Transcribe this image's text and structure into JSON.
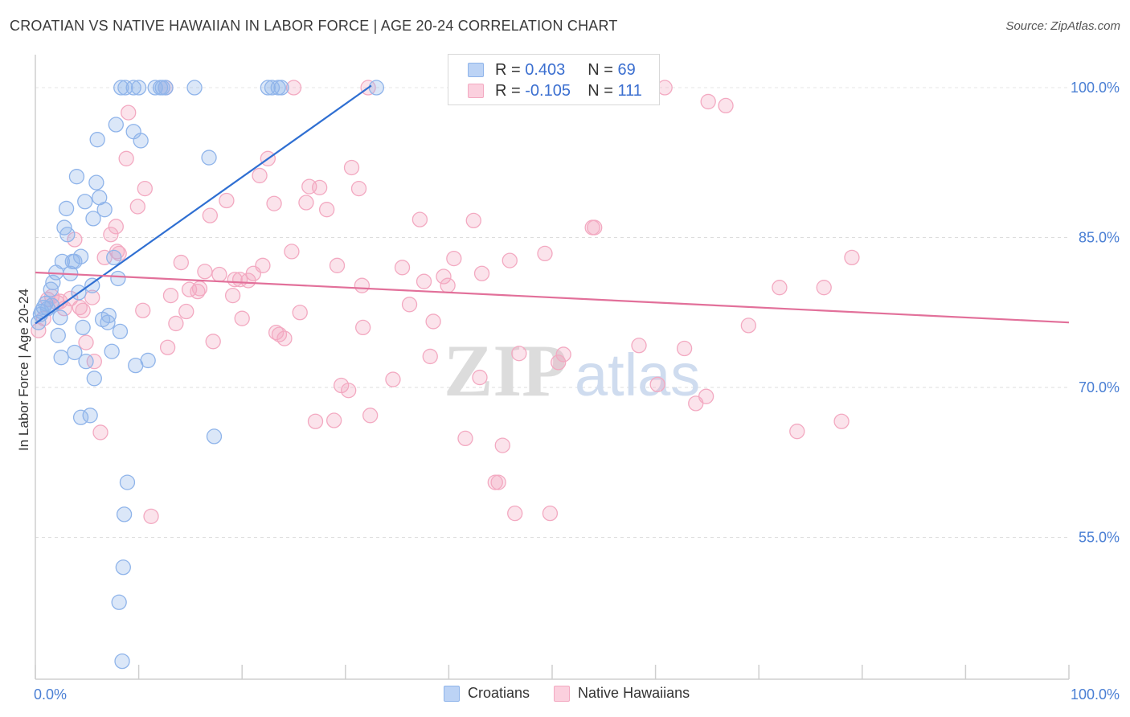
{
  "title": "CROATIAN VS NATIVE HAWAIIAN IN LABOR FORCE | AGE 20-24 CORRELATION CHART",
  "source": "Source: ZipAtlas.com",
  "watermark": {
    "zip": "ZIP",
    "atlas": "atlas"
  },
  "legend": {
    "croatians": {
      "r_label": "R =",
      "r_value": "0.403",
      "n_label": "N =",
      "n_value": "69"
    },
    "hawaiians": {
      "r_label": "R =",
      "r_value": "-0.105",
      "n_label": "N =",
      "n_value": "111"
    }
  },
  "bottom_legend": {
    "croatians": "Croatians",
    "hawaiians": "Native Hawaiians"
  },
  "chart_data": {
    "type": "scatter",
    "title": "CROATIAN VS NATIVE HAWAIIAN IN LABOR FORCE | AGE 20-24 CORRELATION CHART",
    "xlabel": "",
    "ylabel": "In Labor Force | Age 20-24",
    "xlim": [
      0,
      100
    ],
    "ylim": [
      40.8,
      103.3
    ],
    "x_tick_labels": [
      "0.0%",
      "100.0%"
    ],
    "y_ticks": [
      55,
      70,
      85,
      100
    ],
    "y_tick_labels": [
      "55.0%",
      "70.0%",
      "85.0%",
      "100.0%"
    ],
    "grid": true,
    "colors": {
      "croatians": "#8fb4ea",
      "croatians_line": "#2f6fd2",
      "hawaiians": "#f3a9c1",
      "hawaiians_line": "#e2709a"
    },
    "series": [
      {
        "name": "Croatians",
        "trendline": {
          "x": [
            0,
            32.5
          ],
          "y": [
            76.4,
            100.2
          ]
        },
        "points": [
          [
            0.3,
            76.5
          ],
          [
            0.5,
            77.3
          ],
          [
            0.6,
            77.6
          ],
          [
            0.8,
            78
          ],
          [
            1.0,
            78.4
          ],
          [
            1.2,
            77.9
          ],
          [
            1.5,
            79.8
          ],
          [
            1.6,
            78.2
          ],
          [
            1.7,
            80.5
          ],
          [
            2,
            81.5
          ],
          [
            2.2,
            75.2
          ],
          [
            2.4,
            77
          ],
          [
            2.5,
            73
          ],
          [
            2.6,
            82.6
          ],
          [
            2.8,
            86
          ],
          [
            3,
            87.9
          ],
          [
            3.1,
            85.3
          ],
          [
            3.4,
            81.4
          ],
          [
            3.6,
            82.6
          ],
          [
            3.8,
            73.5
          ],
          [
            3.8,
            82.6
          ],
          [
            4,
            91.1
          ],
          [
            4.2,
            79.5
          ],
          [
            4.4,
            83.1
          ],
          [
            4.4,
            67
          ],
          [
            4.6,
            76
          ],
          [
            4.8,
            88.6
          ],
          [
            4.9,
            72.6
          ],
          [
            5.3,
            67.2
          ],
          [
            5.5,
            80.2
          ],
          [
            5.6,
            86.9
          ],
          [
            5.7,
            70.9
          ],
          [
            5.9,
            90.5
          ],
          [
            6,
            94.8
          ],
          [
            6.2,
            89
          ],
          [
            6.5,
            76.8
          ],
          [
            6.7,
            87.8
          ],
          [
            7,
            76.5
          ],
          [
            7.1,
            77.2
          ],
          [
            7.4,
            73.6
          ],
          [
            7.6,
            83
          ],
          [
            7.8,
            96.3
          ],
          [
            8.0,
            80.9
          ],
          [
            8.1,
            48.5
          ],
          [
            8.2,
            75.6
          ],
          [
            8.4,
            42.6
          ],
          [
            8.5,
            52
          ],
          [
            8.6,
            57.3
          ],
          [
            8.9,
            60.5
          ],
          [
            9.5,
            95.6
          ],
          [
            9.7,
            72.2
          ],
          [
            10.2,
            94.7
          ],
          [
            10.9,
            72.7
          ],
          [
            12.1,
            100
          ],
          [
            12.3,
            100
          ],
          [
            8.3,
            100
          ],
          [
            8.7,
            100
          ],
          [
            9.5,
            100
          ],
          [
            10,
            100
          ],
          [
            11.6,
            100
          ],
          [
            12.6,
            100
          ],
          [
            15.4,
            100
          ],
          [
            16.8,
            93
          ],
          [
            17.3,
            65.1
          ],
          [
            22.5,
            100
          ],
          [
            22.9,
            100
          ],
          [
            23.5,
            100
          ],
          [
            23.8,
            100
          ],
          [
            33,
            100
          ]
        ]
      },
      {
        "name": "Native Hawaiians",
        "trendline": {
          "x": [
            0,
            100
          ],
          "y": [
            81.5,
            76.5
          ]
        },
        "points": [
          [
            0.3,
            75.7
          ],
          [
            0.8,
            76.9
          ],
          [
            1.2,
            78.8
          ],
          [
            1.6,
            79.1
          ],
          [
            2.1,
            78.5
          ],
          [
            2.4,
            78.6
          ],
          [
            2.8,
            77.9
          ],
          [
            3.4,
            78.9
          ],
          [
            3.8,
            84.8
          ],
          [
            4.3,
            78
          ],
          [
            4.6,
            77.7
          ],
          [
            4.9,
            74.5
          ],
          [
            5.5,
            79
          ],
          [
            5.7,
            72.6
          ],
          [
            6.3,
            65.5
          ],
          [
            6.7,
            83
          ],
          [
            7.3,
            85.3
          ],
          [
            7.8,
            86.1
          ],
          [
            7.9,
            83.6
          ],
          [
            8.1,
            83.4
          ],
          [
            8.8,
            92.9
          ],
          [
            9,
            97.5
          ],
          [
            9.9,
            88.1
          ],
          [
            10.4,
            77.7
          ],
          [
            10.6,
            89.9
          ],
          [
            11.2,
            57.1
          ],
          [
            12.6,
            100
          ],
          [
            12.8,
            74
          ],
          [
            13.1,
            79.2
          ],
          [
            13.6,
            76.4
          ],
          [
            14.1,
            82.5
          ],
          [
            14.6,
            77.6
          ],
          [
            14.9,
            79.8
          ],
          [
            15.7,
            79.6
          ],
          [
            15.9,
            79.9
          ],
          [
            16.4,
            81.6
          ],
          [
            16.9,
            87.2
          ],
          [
            17.2,
            74.6
          ],
          [
            17.8,
            81.3
          ],
          [
            18.5,
            88.7
          ],
          [
            19.1,
            79.2
          ],
          [
            19.3,
            80.8
          ],
          [
            19.8,
            80.8
          ],
          [
            20,
            76.9
          ],
          [
            20.6,
            80.7
          ],
          [
            21.1,
            81.4
          ],
          [
            21.7,
            91.2
          ],
          [
            22,
            82.2
          ],
          [
            22.5,
            92.9
          ],
          [
            23.1,
            88.4
          ],
          [
            23.3,
            75.5
          ],
          [
            23.6,
            75.3
          ],
          [
            24.1,
            74.9
          ],
          [
            24.8,
            83.6
          ],
          [
            25,
            100
          ],
          [
            25.6,
            77.5
          ],
          [
            26.2,
            88.5
          ],
          [
            26.5,
            90.1
          ],
          [
            27.1,
            66.6
          ],
          [
            27.5,
            90
          ],
          [
            28.2,
            87.8
          ],
          [
            28.9,
            66.7
          ],
          [
            29.2,
            82.2
          ],
          [
            29.6,
            70.2
          ],
          [
            30.3,
            69.7
          ],
          [
            30.6,
            92
          ],
          [
            31.3,
            89.9
          ],
          [
            31.6,
            80.2
          ],
          [
            31.7,
            76
          ],
          [
            32.4,
            67.2
          ],
          [
            32.2,
            100
          ],
          [
            34.6,
            70.8
          ],
          [
            35.5,
            82
          ],
          [
            36.2,
            78.3
          ],
          [
            37.2,
            86.8
          ],
          [
            37.6,
            80.6
          ],
          [
            38.2,
            73.1
          ],
          [
            38.5,
            76.6
          ],
          [
            39.5,
            81.1
          ],
          [
            39.9,
            80.2
          ],
          [
            40.5,
            82.9
          ],
          [
            41.6,
            64.9
          ],
          [
            42.4,
            86.7
          ],
          [
            43,
            71
          ],
          [
            43.2,
            81.4
          ],
          [
            44.5,
            60.5
          ],
          [
            44.8,
            60.5
          ],
          [
            45.2,
            64.2
          ],
          [
            45.9,
            82.7
          ],
          [
            46.4,
            57.4
          ],
          [
            46.8,
            73.4
          ],
          [
            49.3,
            83.4
          ],
          [
            49.8,
            57.4
          ],
          [
            50.6,
            72.5
          ],
          [
            51.1,
            73.3
          ],
          [
            53.9,
            86
          ],
          [
            54.1,
            86
          ],
          [
            58.4,
            74.2
          ],
          [
            60.2,
            70.3
          ],
          [
            60.9,
            100
          ],
          [
            62.8,
            73.9
          ],
          [
            63.9,
            68.4
          ],
          [
            64.9,
            69.1
          ],
          [
            65.1,
            98.6
          ],
          [
            66.8,
            98.2
          ],
          [
            69,
            76.2
          ],
          [
            72,
            80
          ],
          [
            73.7,
            65.6
          ],
          [
            76.3,
            80
          ],
          [
            78,
            66.6
          ],
          [
            79,
            83
          ]
        ]
      }
    ]
  }
}
